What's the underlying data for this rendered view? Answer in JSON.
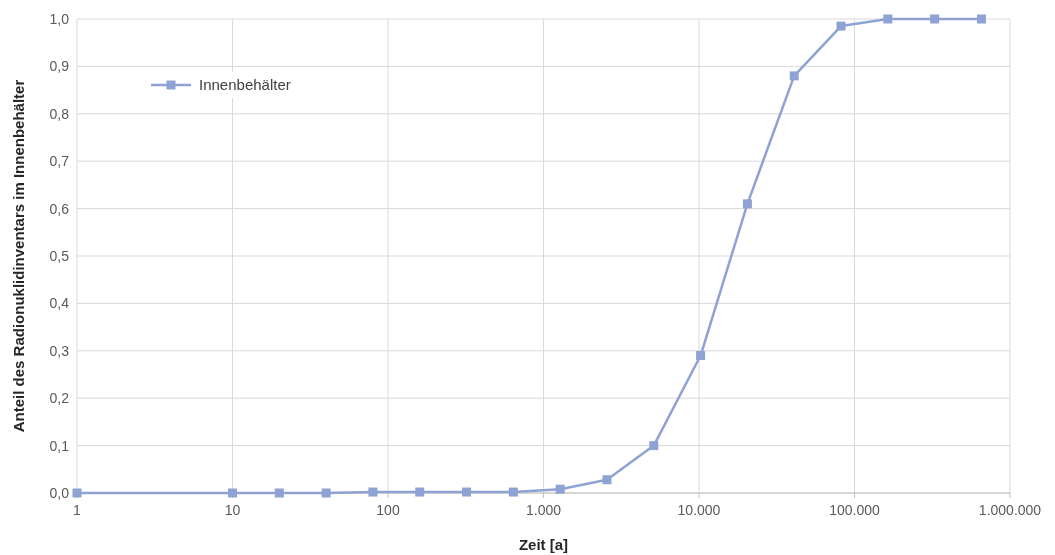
{
  "chart_data": {
    "type": "line",
    "xlabel": "Zeit [a]",
    "ylabel": "Anteil des Radionuklidinventars im Innenbehälter",
    "log": "x",
    "x": [
      1,
      10,
      20,
      40,
      80,
      160,
      320,
      640,
      1280,
      2560,
      5120,
      10240,
      20480,
      40960,
      81920,
      163840,
      327680,
      655360
    ],
    "series": [
      {
        "name": "Innenbehälter",
        "color": "#8fa2d4",
        "values": [
          0,
          0,
          0,
          0,
          0.002,
          0.002,
          0.002,
          0.002,
          0.008,
          0.028,
          0.1,
          0.29,
          0.61,
          0.88,
          0.985,
          1,
          1,
          1
        ]
      }
    ],
    "xlim": [
      1,
      1000000
    ],
    "xticks": [
      1,
      10,
      100,
      {
        "value": 1000,
        "label": "1.000"
      },
      {
        "value": 10000,
        "label": "10.000"
      },
      {
        "value": 100000,
        "label": "100.000"
      },
      {
        "value": 1000000,
        "label": "1.000.000"
      }
    ],
    "ylim": [
      0,
      1
    ],
    "yticks": [
      {
        "value": 0,
        "label": "0,0"
      },
      {
        "value": 0.1,
        "label": "0,1"
      },
      {
        "value": 0.2,
        "label": "0,2"
      },
      {
        "value": 0.3,
        "label": "0,3"
      },
      {
        "value": 0.4,
        "label": "0,4"
      },
      {
        "value": 0.5,
        "label": "0,5"
      },
      {
        "value": 0.6,
        "label": "0,6"
      },
      {
        "value": 0.7,
        "label": "0,7"
      },
      {
        "value": 0.8,
        "label": "0,8"
      },
      {
        "value": 0.9,
        "label": "0,9"
      },
      {
        "value": 1,
        "label": "1,0"
      }
    ],
    "grid": true,
    "legend": "top left",
    "marker": "square",
    "line_style": "solid"
  }
}
